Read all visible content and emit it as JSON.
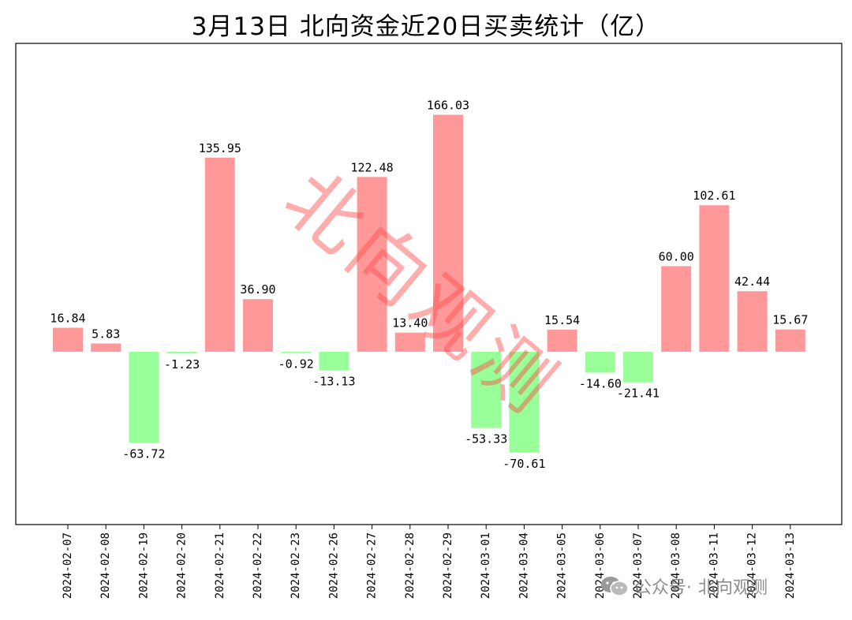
{
  "chart_data": {
    "type": "bar",
    "title": "3月13日 北向资金近20日买卖统计（亿）",
    "categories": [
      "2024-02-07",
      "2024-02-08",
      "2024-02-19",
      "2024-02-20",
      "2024-02-21",
      "2024-02-22",
      "2024-02-23",
      "2024-02-26",
      "2024-02-27",
      "2024-02-28",
      "2024-02-29",
      "2024-03-01",
      "2024-03-04",
      "2024-03-05",
      "2024-03-06",
      "2024-03-07",
      "2024-03-08",
      "2024-03-11",
      "2024-03-12",
      "2024-03-13"
    ],
    "values": [
      16.84,
      5.83,
      -63.72,
      -1.23,
      135.95,
      36.9,
      -0.92,
      -13.13,
      122.48,
      13.4,
      166.03,
      -53.33,
      -70.61,
      15.54,
      -14.6,
      -21.41,
      60.0,
      102.61,
      42.44,
      15.67
    ],
    "value_labels": [
      "16.84",
      "5.83",
      "-63.72",
      "-1.23",
      "135.95",
      "36.90",
      "-0.92",
      "-13.13",
      "122.48",
      "13.40",
      "166.03",
      "-53.33",
      "-70.61",
      "15.54",
      "-14.60",
      "-21.41",
      "60.00",
      "102.61",
      "42.44",
      "15.67"
    ],
    "ylim": [
      -121,
      216
    ],
    "xlabel": "",
    "ylabel": "",
    "grid": false,
    "y_ticks_shown": false,
    "colors": {
      "positive": "#ff9999",
      "negative": "#99ff99"
    }
  },
  "watermark": {
    "text": "北向观测",
    "color": "#ff4646"
  },
  "footer": {
    "icon": "wechat-icon",
    "prefix": "公众号·",
    "name": "北向观测"
  }
}
